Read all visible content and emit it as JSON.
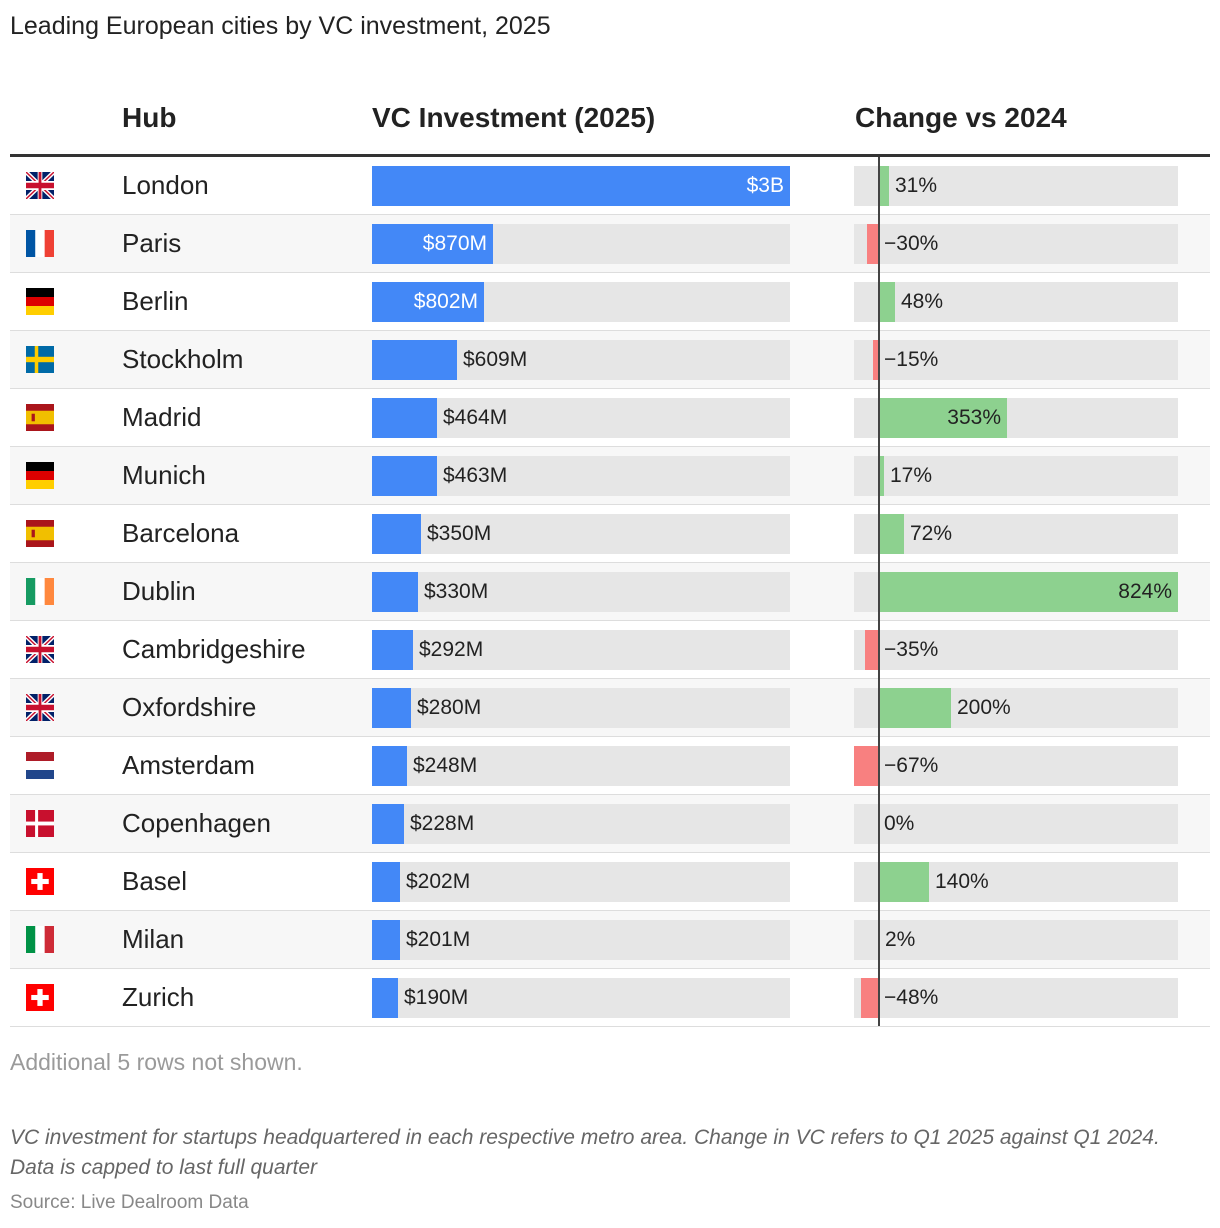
{
  "title": "Leading European cities by VC investment, 2025",
  "headers": {
    "hub": "Hub",
    "vc": "VC Investment (2025)",
    "change": "Change vs 2024"
  },
  "note": "Additional 5 rows not shown.",
  "description": "VC investment for startups headquartered in each respective metro area. Change in VC refers to Q1 2025 against Q1 2024. Data is capped to last full quarter",
  "source": "Source: Live Dealroom Data",
  "colors": {
    "vc_bar": "#4388f7",
    "positive": "#8dd18f",
    "negative": "#f88080",
    "track": "#e6e6e6"
  },
  "chart_data": {
    "type": "table",
    "columns": [
      "Hub",
      "VC Investment (2025)",
      "Change vs 2024"
    ],
    "vc_max_musd": 3000,
    "change_range_pct": [
      -67,
      824
    ],
    "rows": [
      {
        "flag": "uk",
        "city": "London",
        "vc_musd": 3000,
        "vc_label": "$3B",
        "change": 31,
        "change_label": "31%"
      },
      {
        "flag": "fr",
        "city": "Paris",
        "vc_musd": 870,
        "vc_label": "$870M",
        "change": -30,
        "change_label": "−30%"
      },
      {
        "flag": "de",
        "city": "Berlin",
        "vc_musd": 802,
        "vc_label": "$802M",
        "change": 48,
        "change_label": "48%"
      },
      {
        "flag": "se",
        "city": "Stockholm",
        "vc_musd": 609,
        "vc_label": "$609M",
        "change": -15,
        "change_label": "−15%"
      },
      {
        "flag": "es",
        "city": "Madrid",
        "vc_musd": 464,
        "vc_label": "$464M",
        "change": 353,
        "change_label": "353%"
      },
      {
        "flag": "de",
        "city": "Munich",
        "vc_musd": 463,
        "vc_label": "$463M",
        "change": 17,
        "change_label": "17%"
      },
      {
        "flag": "es",
        "city": "Barcelona",
        "vc_musd": 350,
        "vc_label": "$350M",
        "change": 72,
        "change_label": "72%"
      },
      {
        "flag": "ie",
        "city": "Dublin",
        "vc_musd": 330,
        "vc_label": "$330M",
        "change": 824,
        "change_label": "824%"
      },
      {
        "flag": "uk",
        "city": "Cambridgeshire",
        "vc_musd": 292,
        "vc_label": "$292M",
        "change": -35,
        "change_label": "−35%"
      },
      {
        "flag": "uk",
        "city": "Oxfordshire",
        "vc_musd": 280,
        "vc_label": "$280M",
        "change": 200,
        "change_label": "200%"
      },
      {
        "flag": "nl",
        "city": "Amsterdam",
        "vc_musd": 248,
        "vc_label": "$248M",
        "change": -67,
        "change_label": "−67%"
      },
      {
        "flag": "dk",
        "city": "Copenhagen",
        "vc_musd": 228,
        "vc_label": "$228M",
        "change": 0,
        "change_label": "0%"
      },
      {
        "flag": "ch",
        "city": "Basel",
        "vc_musd": 202,
        "vc_label": "$202M",
        "change": 140,
        "change_label": "140%"
      },
      {
        "flag": "it",
        "city": "Milan",
        "vc_musd": 201,
        "vc_label": "$201M",
        "change": 2,
        "change_label": "2%"
      },
      {
        "flag": "ch",
        "city": "Zurich",
        "vc_musd": 190,
        "vc_label": "$190M",
        "change": -48,
        "change_label": "−48%"
      }
    ]
  }
}
